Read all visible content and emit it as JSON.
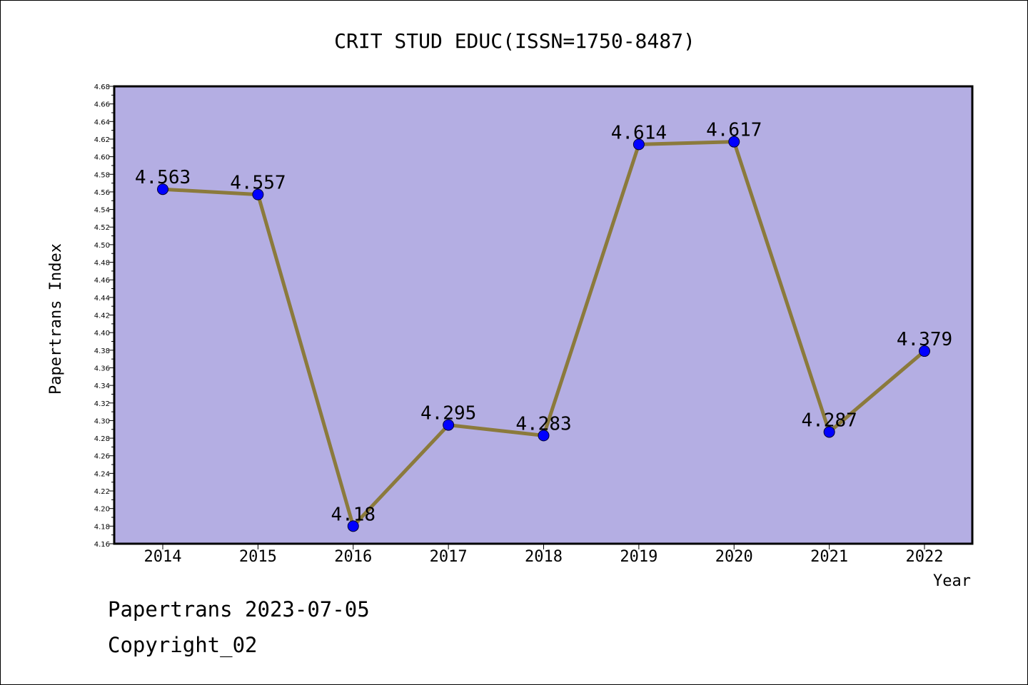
{
  "chart_data": {
    "type": "line",
    "title": "CRIT STUD EDUC(ISSN=1750-8487)",
    "xlabel": "Year",
    "ylabel": "Papertrans Index",
    "categories": [
      "2014",
      "2015",
      "2016",
      "2017",
      "2018",
      "2019",
      "2020",
      "2021",
      "2022"
    ],
    "series": [
      {
        "values": [
          4.563,
          4.557,
          4.18,
          4.295,
          4.283,
          4.614,
          4.617,
          4.287,
          4.379
        ],
        "labels": [
          "4.563",
          "4.557",
          "4.18",
          "4.295",
          "4.283",
          "4.614",
          "4.617",
          "4.287",
          "4.379"
        ]
      }
    ],
    "ylim": [
      4.16,
      4.68
    ],
    "ytick_step": 0.02,
    "grid": false,
    "legend": "none",
    "colors": {
      "plot_background": "#b4aee3",
      "line": "#8b7a3c",
      "marker": "#0000ff",
      "marker_edge": "#000033"
    }
  },
  "footer": {
    "date_line": "Papertrans 2023-07-05",
    "copyright_line": "Copyright_02"
  }
}
